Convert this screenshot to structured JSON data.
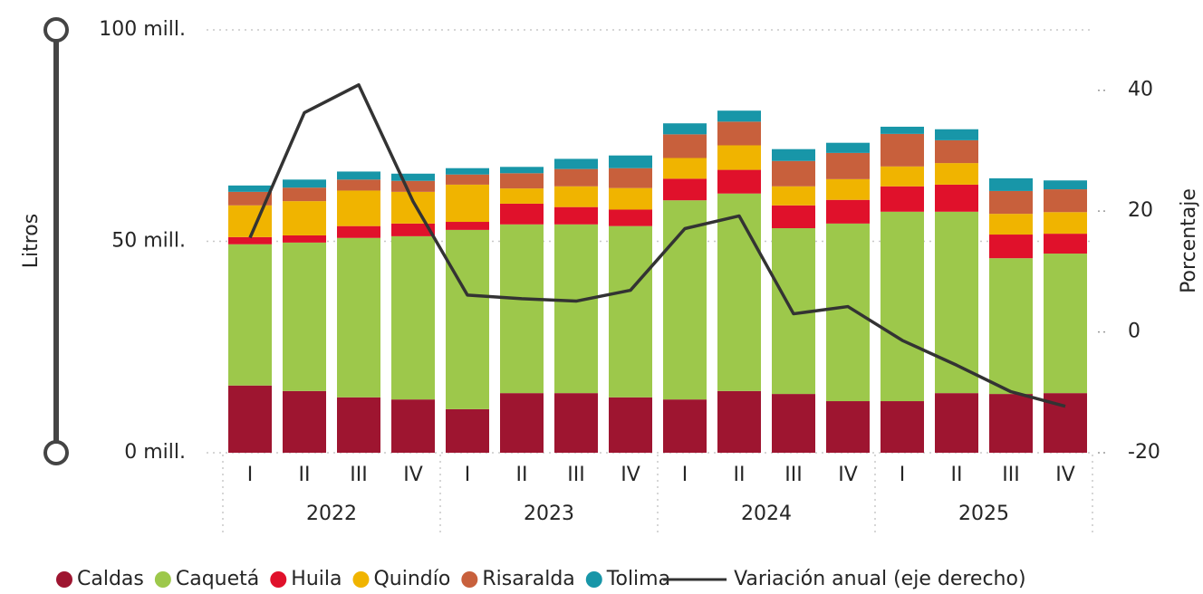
{
  "chart_data": {
    "type": "bar",
    "stacked": true,
    "y_title": "Litros",
    "y2_title": "Porcentaje",
    "categories": [
      "I",
      "II",
      "III",
      "IV",
      "I",
      "II",
      "III",
      "IV",
      "I",
      "II",
      "III",
      "IV",
      "I",
      "II",
      "III",
      "IV"
    ],
    "years": [
      "2022",
      "2023",
      "2024",
      "2025"
    ],
    "ylim": [
      0,
      100
    ],
    "yticks": [
      {
        "value": 0,
        "label": "0 mill."
      },
      {
        "value": 50,
        "label": "50 mill."
      },
      {
        "value": 100,
        "label": "100 mill."
      }
    ],
    "y2lim": [
      -20,
      50
    ],
    "y2ticks": [
      -20,
      0,
      20,
      40
    ],
    "grid": true,
    "legend": "bottom",
    "series": [
      {
        "name": "Caldas",
        "color": "#9e1530",
        "values": [
          15.9,
          14.6,
          13.1,
          12.6,
          10.3,
          14.1,
          14.1,
          13.1,
          12.6,
          14.6,
          13.9,
          12.2,
          12.2,
          14.1,
          13.9,
          14.1
        ]
      },
      {
        "name": "Caquetá",
        "color": "#9dc84b",
        "values": [
          33.4,
          35.1,
          37.7,
          38.6,
          42.4,
          39.9,
          39.9,
          40.5,
          47.1,
          46.7,
          39.2,
          42.0,
          44.8,
          42.9,
          32.1,
          33.0
        ]
      },
      {
        "name": "Huila",
        "color": "#e0112b",
        "values": [
          1.7,
          1.7,
          2.8,
          3.0,
          1.9,
          4.9,
          4.1,
          3.9,
          5.1,
          5.6,
          5.4,
          5.6,
          6.0,
          6.4,
          5.6,
          4.7
        ]
      },
      {
        "name": "Quindío",
        "color": "#f0b400",
        "values": [
          7.5,
          8.1,
          8.4,
          7.5,
          8.8,
          3.6,
          4.9,
          5.1,
          4.9,
          5.8,
          4.5,
          4.9,
          4.7,
          5.1,
          4.9,
          5.1
        ]
      },
      {
        "name": "Risaralda",
        "color": "#c8603c",
        "values": [
          3.2,
          3.2,
          2.6,
          2.6,
          2.4,
          3.6,
          4.1,
          4.7,
          5.6,
          5.6,
          6.0,
          6.2,
          7.7,
          5.4,
          5.4,
          5.4
        ]
      },
      {
        "name": "Tolima",
        "color": "#1896a8",
        "values": [
          1.5,
          1.9,
          1.9,
          1.7,
          1.5,
          1.5,
          2.4,
          3.0,
          2.6,
          2.6,
          2.8,
          2.4,
          1.7,
          2.6,
          3.0,
          2.1
        ]
      },
      {
        "name": "Variación anual (eje derecho)",
        "type": "line",
        "axis": "y2",
        "color": "#333333",
        "values": [
          15.6,
          36.3,
          40.9,
          21.6,
          6.1,
          5.5,
          5.1,
          6.9,
          17.1,
          19.2,
          3.0,
          4.2,
          -1.4,
          -5.5,
          -9.9,
          -12.3
        ]
      }
    ]
  }
}
